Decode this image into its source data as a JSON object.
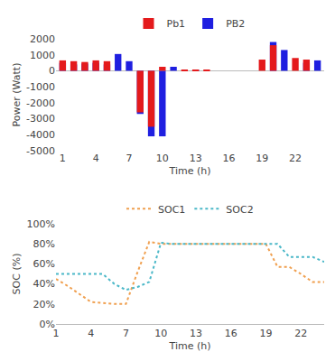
{
  "chart_data": [
    {
      "type": "bar",
      "x_label": "Time (h)",
      "y_label": "Power (Watt)",
      "categories": [
        1,
        null,
        null,
        4,
        null,
        null,
        7,
        null,
        null,
        10,
        null,
        null,
        13,
        null,
        null,
        16,
        null,
        null,
        19,
        null,
        null,
        22,
        null,
        null
      ],
      "series": [
        {
          "name": "Pb1",
          "color": "#e41a1c",
          "values": [
            650,
            600,
            550,
            650,
            600,
            0,
            0,
            -2600,
            -3500,
            250,
            0,
            50,
            50,
            30,
            0,
            0,
            0,
            0,
            700,
            1600,
            0,
            800,
            700,
            0
          ]
        },
        {
          "name": "PB2",
          "color": "#1f1fe0",
          "values": [
            500,
            400,
            450,
            500,
            400,
            1050,
            600,
            -2700,
            -4100,
            -4100,
            250,
            0,
            30,
            0,
            0,
            0,
            0,
            0,
            0,
            1800,
            1300,
            0,
            500,
            650
          ]
        }
      ],
      "ylim": [
        -5000,
        2000
      ],
      "yticks": [
        -5000,
        -4000,
        -3000,
        -2000,
        -1000,
        0,
        1000,
        2000
      ],
      "grid": false,
      "legend": "top"
    },
    {
      "type": "line",
      "x_label": "Time (h)",
      "y_label": "SOC (%)",
      "x": [
        1,
        2,
        3,
        4,
        5,
        6,
        7,
        8,
        9,
        10,
        11,
        12,
        13,
        14,
        15,
        16,
        17,
        18,
        19,
        20,
        21,
        22,
        23,
        24
      ],
      "series": [
        {
          "name": "SOC1",
          "color": "#f0a050",
          "line_style": "dot",
          "values": [
            45,
            38,
            30,
            22,
            21,
            20,
            20,
            52,
            82,
            80,
            80,
            80,
            80,
            80,
            80,
            80,
            80,
            80,
            80,
            57,
            57,
            50,
            42,
            42
          ]
        },
        {
          "name": "SOC2",
          "color": "#4bb8c8",
          "line_style": "dot",
          "values": [
            50,
            50,
            50,
            50,
            50,
            40,
            34,
            37,
            42,
            81,
            80,
            80,
            80,
            80,
            80,
            80,
            80,
            80,
            80,
            80,
            67,
            67,
            67,
            62
          ]
        }
      ],
      "xlim": [
        1,
        24
      ],
      "xticks": [
        1,
        4,
        7,
        10,
        13,
        16,
        19,
        22
      ],
      "ylim": [
        0,
        100
      ],
      "yticks": [
        {
          "value": 0,
          "label": "0%"
        },
        {
          "value": 20,
          "label": "20%"
        },
        {
          "value": 40,
          "label": "40%"
        },
        {
          "value": 60,
          "label": "60%"
        },
        {
          "value": 80,
          "label": "80%"
        },
        {
          "value": 100,
          "label": "100%"
        }
      ],
      "grid": false,
      "legend": "top"
    }
  ]
}
